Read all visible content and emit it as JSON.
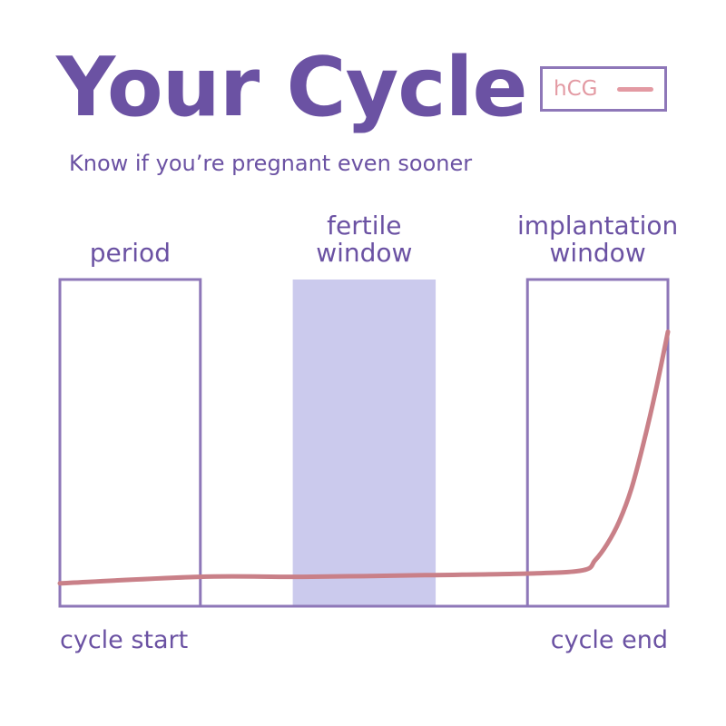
{
  "header": {
    "title": "Your Cycle",
    "subtitle": "Know if you’re pregnant even sooner"
  },
  "legend": {
    "label": "hCG",
    "color": "#e39aa3"
  },
  "chart_data": {
    "type": "line",
    "title": "Your Cycle",
    "subtitle": "Know if you’re pregnant even sooner",
    "xlabel": "",
    "ylabel": "",
    "x_start_label": "cycle start",
    "x_end_label": "cycle end",
    "xlim": [
      0,
      1
    ],
    "ylim": [
      0,
      1
    ],
    "grid": false,
    "legend_position": "top-right",
    "zones": [
      {
        "name": "period",
        "label_lines": [
          "period"
        ],
        "start": 0.0,
        "end": 0.231,
        "style": "outline",
        "color": "#8e77b8"
      },
      {
        "name": "fertile window",
        "label_lines": [
          "fertile",
          "window"
        ],
        "start": 0.383,
        "end": 0.618,
        "style": "filled",
        "color": "#cbcaed"
      },
      {
        "name": "implantation window",
        "label_lines": [
          "implantation",
          "window"
        ],
        "start": 0.769,
        "end": 1.0,
        "style": "outline",
        "color": "#8e77b8"
      }
    ],
    "series": [
      {
        "name": "hCG",
        "color": "#c98088",
        "x": [
          0.0,
          0.23,
          0.4,
          0.6,
          0.769,
          0.86,
          0.88,
          0.9,
          0.92,
          0.94,
          0.96,
          0.98,
          1.0
        ],
        "y": [
          0.07,
          0.09,
          0.09,
          0.095,
          0.1,
          0.11,
          0.14,
          0.19,
          0.26,
          0.36,
          0.5,
          0.66,
          0.84
        ]
      }
    ]
  }
}
